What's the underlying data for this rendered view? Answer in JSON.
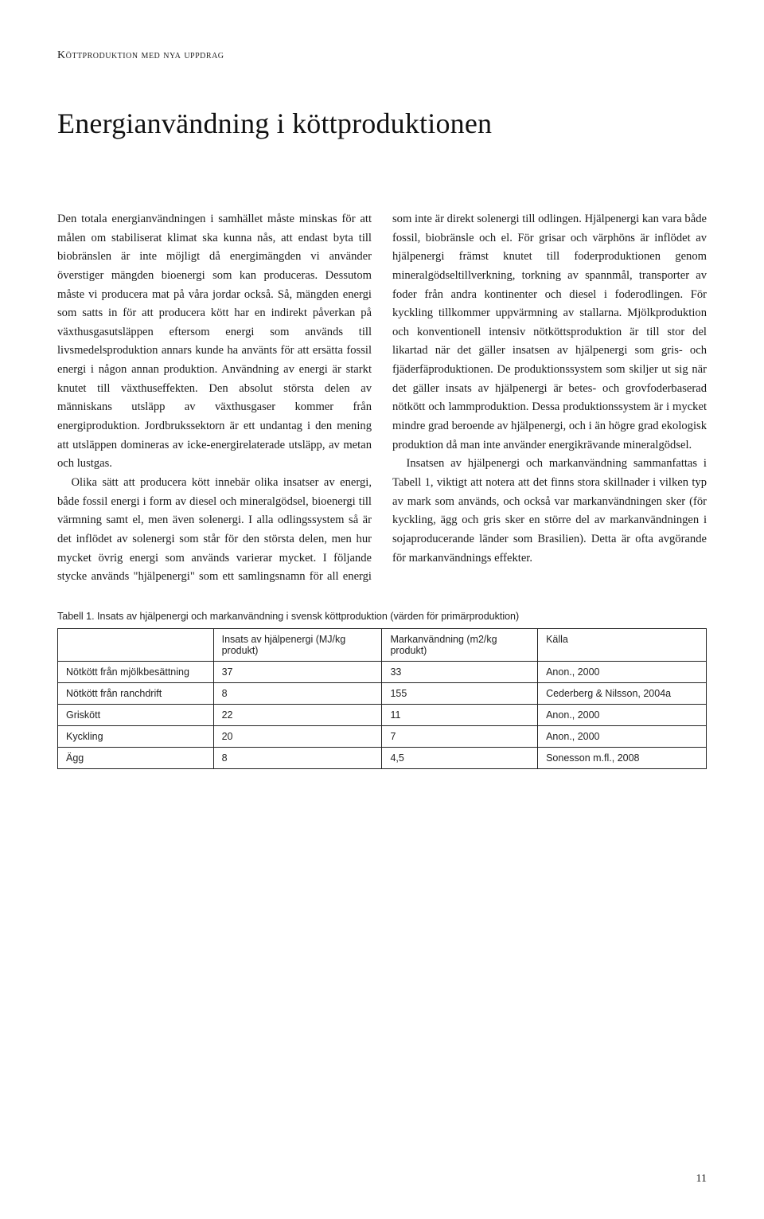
{
  "running_header": "Köttproduktion med nya uppdrag",
  "title": "Energianvändning i köttproduktionen",
  "paragraphs": [
    "Den totala energianvändningen i samhället måste minskas för att målen om stabiliserat klimat ska kunna nås, att endast byta till biobränslen är inte möjligt då energimängden vi använder överstiger mängden bioenergi som kan produceras. Dessutom måste vi producera mat på våra jordar också. Så, mängden energi som satts in för att producera kött har en indirekt påverkan på växthusgasutsläppen eftersom energi som används till livsmedelsproduktion annars kunde ha använts för att ersätta fossil energi i någon annan produktion. Användning av energi är starkt knutet till växthuseffekten. Den absolut största delen av människans utsläpp av växthusgaser kommer från energiproduktion. Jordbrukssektorn är ett undantag i den mening att utsläppen domineras av icke-energirelaterade utsläpp, av metan och lustgas.",
    "Olika sätt att producera kött innebär olika insatser av energi, både fossil energi i form av diesel och mineralgödsel, bioenergi till värmning samt el, men även solenergi. I alla odlingssystem så är det inflödet av solenergi som står för den största delen, men hur mycket övrig energi som används varierar mycket. I följande stycke används \"hjälpenergi\" som ett samlingsnamn för all energi som inte är direkt solenergi till odlingen. Hjälpenergi kan vara både fossil, biobränsle och el. För grisar och värphöns är inflödet av hjälpenergi främst knutet till foderproduktionen genom mineralgödseltillverkning, torkning av spannmål, transporter av foder från andra kontinenter och diesel i foderodlingen. För kyckling tillkommer uppvärmning av stallarna. Mjölkproduktion och konventionell intensiv nötköttsproduktion är till stor del likartad när det gäller insatsen av hjälpenergi som gris- och fjäderfäproduktionen. De produktionssystem som skiljer ut sig när det gäller insats av hjälpenergi är betes- och grovfoderbaserad nötkött och lammproduktion. Dessa produktionssystem är i mycket mindre grad beroende av hjälpenergi, och i än högre grad ekologisk produktion då man inte använder energikrävande mineralgödsel.",
    "Insatsen av hjälpenergi och markanvändning sammanfattas i Tabell 1, viktigt att notera att det finns stora skillnader i vilken typ av mark som används, och också var markanvändningen sker (för kyckling, ägg och gris sker en större del av markanvändningen i sojaproducerande länder som Brasilien). Detta är ofta avgörande för markanvändnings effekter."
  ],
  "table": {
    "caption": "Tabell 1. Insats av hjälpenergi och markanvändning i svensk köttproduktion (värden för primärproduktion)",
    "headers": [
      "",
      "Insats av hjälpenergi (MJ/kg produkt)",
      "Markanvändning (m2/kg produkt)",
      "Källa"
    ],
    "col_widths": [
      "24%",
      "26%",
      "24%",
      "26%"
    ],
    "rows": [
      [
        "Nötkött från mjölkbesättning",
        "37",
        "33",
        "Anon., 2000"
      ],
      [
        "Nötkött från ranchdrift",
        "8",
        "155",
        "Cederberg & Nilsson, 2004a"
      ],
      [
        "Griskött",
        "22",
        "11",
        "Anon., 2000"
      ],
      [
        "Kyckling",
        "20",
        "7",
        "Anon., 2000"
      ],
      [
        "Ägg",
        "8",
        "4,5",
        "Sonesson m.fl., 2008"
      ]
    ]
  },
  "page_number": "11"
}
